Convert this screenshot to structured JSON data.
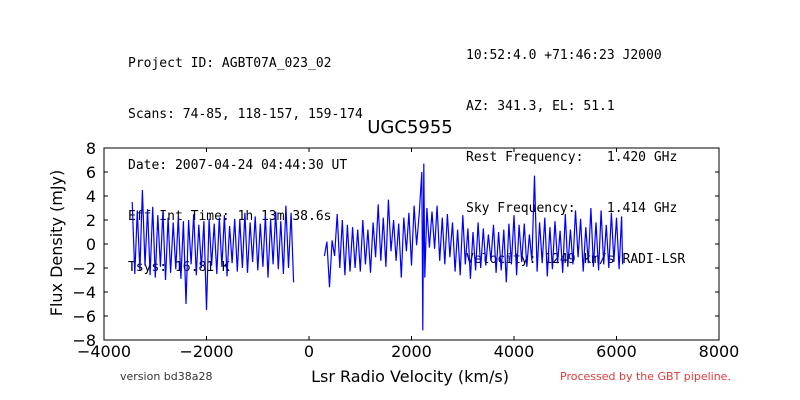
{
  "header": {
    "left": [
      "Project ID: AGBT07A_023_02",
      "Scans: 74-85, 118-157, 159-174",
      "Date: 2007-04-24 04:44:30 UT",
      "Eff Int Time: 1h 13m 38.6s",
      "Tsys: 16.81 K"
    ],
    "right": [
      "10:52:4.0 +71:46:23 J2000",
      "AZ: 341.3, EL: 51.1",
      "Rest Frequency:   1.420 GHz",
      "Sky Frequency:    1.414 GHz",
      "Velocity: 1249 km/s RADI-LSR"
    ]
  },
  "footer": {
    "version": "version bd38a28",
    "pipeline": "Processed by the GBT pipeline."
  },
  "chart_data": {
    "type": "line",
    "title": "UGC5955",
    "xlabel": "Lsr Radio Velocity (km/s)",
    "ylabel": "Flux Density (mJy)",
    "xlim": [
      -4000,
      8000
    ],
    "ylim": [
      -8,
      8
    ],
    "xticks": [
      -4000,
      -2000,
      0,
      2000,
      4000,
      6000,
      8000
    ],
    "xtick_labels": [
      "−4000",
      "−2000",
      "0",
      "2000",
      "4000",
      "6000",
      "8000"
    ],
    "yticks": [
      -8,
      -6,
      -4,
      -2,
      0,
      2,
      4,
      6,
      8
    ],
    "ytick_labels": [
      "−8",
      "−6",
      "−4",
      "−2",
      "0",
      "2",
      "4",
      "6",
      "8"
    ],
    "grid": false,
    "line_color": "#0000ff",
    "series": [
      {
        "x": [
          -3450,
          -3400,
          -3350,
          -3300,
          -3250,
          -3200,
          -3150,
          -3100,
          -3050,
          -3000,
          -2950,
          -2900,
          -2850,
          -2800,
          -2750,
          -2700,
          -2650,
          -2600,
          -2550,
          -2500,
          -2450,
          -2400,
          -2350,
          -2300,
          -2250,
          -2200,
          -2150,
          -2100,
          -2050,
          -2000,
          -1950,
          -1900,
          -1850,
          -1800,
          -1750,
          -1700,
          -1650,
          -1600,
          -1550,
          -1500,
          -1450,
          -1400,
          -1350,
          -1300,
          -1250,
          -1200,
          -1150,
          -1100,
          -1050,
          -1000,
          -950,
          -900,
          -850,
          -800,
          -750,
          -700,
          -650,
          -600,
          -550,
          -500,
          -450,
          -400,
          -350,
          -300
        ],
        "y": [
          3.5,
          -2.5,
          2.8,
          -2.2,
          4.5,
          -1.8,
          2.9,
          -2.6,
          3.1,
          -2.8,
          2.4,
          -1.9,
          2.7,
          -3.0,
          2.2,
          -2.4,
          1.8,
          -2.1,
          2.3,
          -2.9,
          1.9,
          -5.0,
          2.0,
          -1.7,
          2.5,
          -2.6,
          1.6,
          -2.0,
          1.9,
          -5.5,
          2.1,
          -1.8,
          1.7,
          -2.5,
          2.2,
          -1.9,
          2.4,
          -2.7,
          1.5,
          -1.6,
          2.1,
          -2.3,
          2.0,
          -2.0,
          2.6,
          -2.4,
          1.8,
          -1.5,
          2.3,
          -2.2,
          1.7,
          -1.9,
          2.4,
          -2.8,
          2.0,
          -1.7,
          2.7,
          -2.1,
          1.9,
          -2.5,
          3.2,
          -2.0,
          2.6,
          -3.2
        ]
      },
      {
        "x": [
          300,
          350,
          400,
          450,
          500,
          550,
          600,
          650,
          700,
          750,
          800,
          850,
          900,
          950,
          1000,
          1050,
          1100,
          1150,
          1200,
          1250,
          1300,
          1350,
          1400,
          1450,
          1500,
          1550,
          1600,
          1650,
          1700,
          1750,
          1800,
          1850,
          1900,
          1950,
          2000,
          2050,
          2100,
          2150,
          2200,
          2220,
          2240,
          2260,
          2300,
          2350,
          2400,
          2450,
          2500,
          2550,
          2600,
          2650,
          2700,
          2750,
          2800,
          2850,
          2900,
          2950,
          3000,
          3050,
          3100,
          3150,
          3200,
          3250,
          3300,
          3350,
          3400,
          3450,
          3500,
          3550,
          3600,
          3650,
          3700,
          3750,
          3800,
          3850,
          3900,
          3950,
          4000,
          4050,
          4100,
          4150,
          4200,
          4250,
          4300,
          4350,
          4400,
          4450,
          4500,
          4550,
          4600,
          4650,
          4700,
          4750,
          4800,
          4850,
          4900,
          4950,
          5000,
          5050,
          5100,
          5150,
          5200,
          5250,
          5300,
          5350,
          5400,
          5450,
          5500,
          5550,
          5600,
          5650,
          5700,
          5750,
          5800,
          5850,
          5900,
          5950,
          6000,
          6050,
          6100,
          6120
        ],
        "y": [
          -1.0,
          0.2,
          -3.6,
          0.3,
          -1.0,
          2.5,
          -2.0,
          2.0,
          -2.6,
          1.6,
          -2.3,
          1.4,
          -2.0,
          1.2,
          -2.3,
          2.0,
          -1.7,
          1.2,
          -2.4,
          1.8,
          -1.1,
          3.3,
          -1.4,
          2.2,
          -1.9,
          3.7,
          -0.6,
          2.0,
          -1.4,
          1.7,
          -2.8,
          2.2,
          -0.6,
          2.6,
          -1.8,
          3.2,
          -0.1,
          2.5,
          6.0,
          -7.2,
          6.7,
          -2.8,
          3.0,
          -0.3,
          2.7,
          -0.4,
          3.2,
          -1.4,
          2.2,
          -1.7,
          2.5,
          -1.1,
          1.8,
          -2.3,
          1.2,
          -2.6,
          2.4,
          -1.7,
          1.3,
          -2.9,
          1.0,
          -2.2,
          1.8,
          -2.0,
          1.3,
          -1.8,
          0.8,
          -1.4,
          1.6,
          -2.4,
          1.0,
          -2.2,
          1.2,
          -3.2,
          1.7,
          -1.7,
          2.4,
          -2.6,
          1.6,
          -1.5,
          1.7,
          -1.9,
          0.8,
          -1.4,
          5.7,
          -2.3,
          1.8,
          -1.6,
          2.2,
          -2.7,
          1.4,
          -2.1,
          1.9,
          -1.6,
          1.1,
          -2.4,
          2.5,
          -1.9,
          1.2,
          -1.7,
          2.8,
          -1.1,
          2.1,
          -2.3,
          1.4,
          -1.6,
          3.0,
          -1.9,
          1.8,
          -2.2,
          2.8,
          -1.7,
          1.6,
          -2.0,
          2.6,
          -1.5,
          2.2,
          -2.1,
          2.3,
          -1.7
        ]
      }
    ]
  }
}
